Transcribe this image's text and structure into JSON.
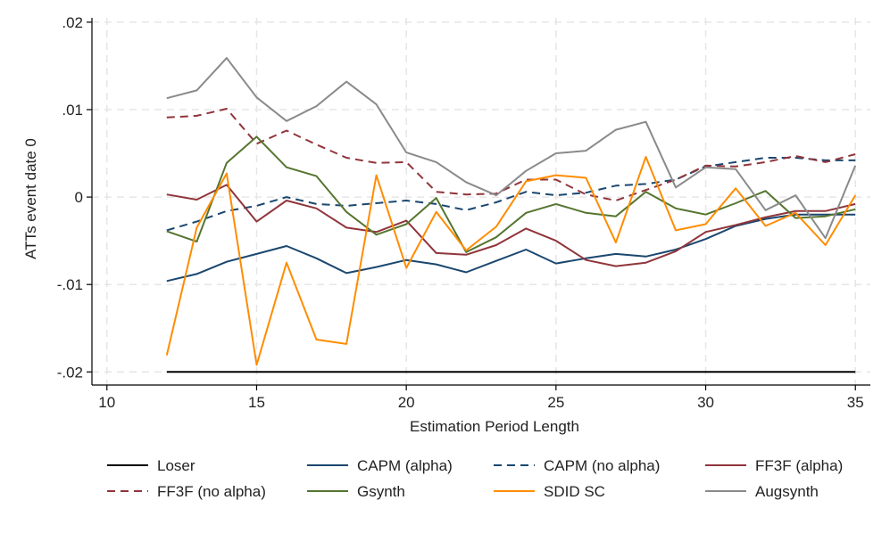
{
  "chart_data": {
    "type": "line",
    "xlabel": "Estimation Period Length",
    "ylabel": "ATTs event date 0",
    "xlim": [
      9.5,
      35.5
    ],
    "ylim": [
      -0.0215,
      0.0205
    ],
    "xticks": [
      10,
      15,
      20,
      25,
      30,
      35
    ],
    "xtick_labels": [
      "10",
      "15",
      "20",
      "25",
      "30",
      "35"
    ],
    "yticks": [
      -0.02,
      -0.01,
      0,
      0.01,
      0.02
    ],
    "ytick_labels": [
      "-.02",
      "-.01",
      "0",
      ".01",
      ".02"
    ],
    "grid": true,
    "legend_position": "bottom",
    "x": [
      12,
      13,
      14,
      15,
      16,
      17,
      18,
      19,
      20,
      21,
      22,
      23,
      24,
      25,
      26,
      27,
      28,
      29,
      30,
      31,
      32,
      33,
      34,
      35
    ],
    "series": [
      {
        "name": "Loser",
        "color": "#000000",
        "dash": "solid",
        "values": [
          -0.02,
          -0.02,
          -0.02,
          -0.02,
          -0.02,
          -0.02,
          -0.02,
          -0.02,
          -0.02,
          -0.02,
          -0.02,
          -0.02,
          -0.02,
          -0.02,
          -0.02,
          -0.02,
          -0.02,
          -0.02,
          -0.02,
          -0.02,
          -0.02,
          -0.02,
          -0.02,
          -0.02
        ]
      },
      {
        "name": "CAPM (alpha)",
        "color": "#1a476f",
        "dash": "solid",
        "values": [
          -0.0096,
          -0.0088,
          -0.0074,
          -0.0065,
          -0.0056,
          -0.007,
          -0.0087,
          -0.008,
          -0.0072,
          -0.0077,
          -0.0086,
          -0.0073,
          -0.006,
          -0.0076,
          -0.007,
          -0.0065,
          -0.0068,
          -0.006,
          -0.0048,
          -0.0033,
          -0.0025,
          -0.002,
          -0.002,
          -0.002
        ]
      },
      {
        "name": "CAPM (no alpha)",
        "color": "#1a476f",
        "dash": "dashed",
        "values": [
          -0.0038,
          -0.0028,
          -0.0016,
          -0.001,
          0.0,
          -0.0008,
          -0.001,
          -0.0007,
          -0.0004,
          -0.0008,
          -0.0015,
          -0.0006,
          0.0006,
          0.0002,
          0.0005,
          0.0013,
          0.0015,
          0.002,
          0.0035,
          0.004,
          0.0045,
          0.0045,
          0.0042,
          0.0042
        ]
      },
      {
        "name": "FF3F (alpha)",
        "color": "#90353b",
        "dash": "solid",
        "values": [
          0.0003,
          -0.0003,
          0.0014,
          -0.0028,
          -0.0004,
          -0.0013,
          -0.0035,
          -0.004,
          -0.0027,
          -0.0064,
          -0.0066,
          -0.0055,
          -0.0036,
          -0.005,
          -0.0072,
          -0.0079,
          -0.0075,
          -0.0062,
          -0.004,
          -0.0032,
          -0.0023,
          -0.0016,
          -0.0016,
          -0.0008
        ]
      },
      {
        "name": "FF3F (no alpha)",
        "color": "#90353b",
        "dash": "dashed",
        "values": [
          0.0091,
          0.0093,
          0.0101,
          0.0061,
          0.0076,
          0.006,
          0.0045,
          0.0039,
          0.004,
          0.0006,
          0.0003,
          0.0004,
          0.002,
          0.002,
          0.0003,
          -0.0004,
          0.0008,
          0.002,
          0.0036,
          0.0035,
          0.004,
          0.0047,
          0.004,
          0.0049
        ]
      },
      {
        "name": "Gsynth",
        "color": "#55752f",
        "dash": "solid",
        "values": [
          -0.0039,
          -0.0051,
          0.0039,
          0.0069,
          0.0034,
          0.0024,
          -0.0017,
          -0.0043,
          -0.0031,
          -0.0001,
          -0.0063,
          -0.0046,
          -0.0018,
          -0.0008,
          -0.0018,
          -0.0022,
          0.0006,
          -0.0013,
          -0.002,
          -0.0007,
          0.0007,
          -0.0024,
          -0.0022,
          -0.0014
        ]
      },
      {
        "name": "SDID SC",
        "color": "#ff8c00",
        "dash": "solid",
        "values": [
          -0.0181,
          -0.0035,
          0.0027,
          -0.0192,
          -0.0075,
          -0.0163,
          -0.0168,
          0.0025,
          -0.0081,
          -0.0017,
          -0.0061,
          -0.0034,
          0.0018,
          0.0025,
          0.0022,
          -0.0052,
          0.0046,
          -0.0038,
          -0.0031,
          0.001,
          -0.0033,
          -0.0018,
          -0.0055,
          0.0002
        ]
      },
      {
        "name": "Augsynth",
        "color": "#8a8a8a",
        "dash": "solid",
        "values": [
          0.0113,
          0.0122,
          0.0159,
          0.0114,
          0.0087,
          0.0104,
          0.0132,
          0.0106,
          0.0051,
          0.004,
          0.0017,
          0.0002,
          0.003,
          0.005,
          0.0053,
          0.0077,
          0.0086,
          0.0011,
          0.0034,
          0.0032,
          -0.0015,
          0.0002,
          -0.0047,
          0.0036
        ]
      }
    ]
  }
}
